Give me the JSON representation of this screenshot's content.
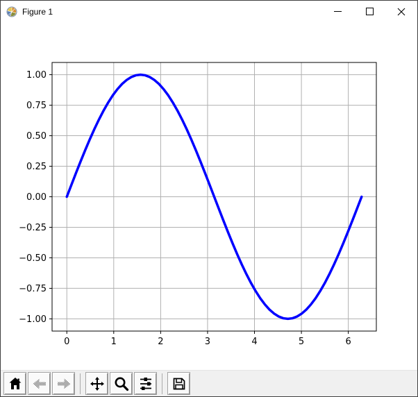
{
  "window": {
    "title": "Figure 1",
    "icon": "matplotlib-logo-icon",
    "controls": [
      {
        "name": "minimize",
        "icon": "minimize-icon"
      },
      {
        "name": "maximize",
        "icon": "maximize-icon"
      },
      {
        "name": "close",
        "icon": "close-icon"
      }
    ]
  },
  "toolbar": {
    "buttons": [
      {
        "id": "home",
        "icon": "home-icon",
        "enabled": true
      },
      {
        "id": "back",
        "icon": "back-arrow-icon",
        "enabled": false
      },
      {
        "id": "forward",
        "icon": "forward-arrow-icon",
        "enabled": false
      },
      {
        "id": "pan",
        "icon": "pan-arrows-icon",
        "enabled": true
      },
      {
        "id": "zoom",
        "icon": "zoom-magnifier-icon",
        "enabled": true
      },
      {
        "id": "configure-subplots",
        "icon": "sliders-icon",
        "enabled": true
      },
      {
        "id": "save",
        "icon": "save-floppy-icon",
        "enabled": true
      }
    ]
  },
  "colors": {
    "curve": "#0000ff",
    "grid": "#b0b0b0",
    "axes_frame": "#000000",
    "canvas_bg": "#ffffff",
    "toolbar_bg": "#f0f0f0"
  },
  "chart_data": {
    "type": "line",
    "title": "",
    "xlabel": "",
    "ylabel": "",
    "grid": true,
    "legend": false,
    "xlim": [
      -0.3142,
      6.5973
    ],
    "ylim": [
      -1.1,
      1.1
    ],
    "xticks": [
      0,
      1,
      2,
      3,
      4,
      5,
      6
    ],
    "xtick_labels": [
      "0",
      "1",
      "2",
      "3",
      "4",
      "5",
      "6"
    ],
    "yticks": [
      1.0,
      0.75,
      0.5,
      0.25,
      0.0,
      -0.25,
      -0.5,
      -0.75,
      -1.0
    ],
    "ytick_labels": [
      "1.00",
      "0.75",
      "0.50",
      "0.25",
      "0.00",
      "−0.25",
      "−0.50",
      "−0.75",
      "−1.00"
    ],
    "series": [
      {
        "color": "#0000ff",
        "linewidth": 3.5,
        "x": [
          0.0,
          0.0982,
          0.1963,
          0.2945,
          0.3927,
          0.4909,
          0.589,
          0.6872,
          0.7854,
          0.8836,
          0.9817,
          1.0799,
          1.1781,
          1.2763,
          1.3744,
          1.4726,
          1.5708,
          1.669,
          1.7671,
          1.8653,
          1.9635,
          2.0617,
          2.1598,
          2.258,
          2.3562,
          2.4544,
          2.5525,
          2.6507,
          2.7489,
          2.8471,
          2.9452,
          3.0434,
          3.1416,
          3.2398,
          3.3379,
          3.4361,
          3.5343,
          3.6325,
          3.7306,
          3.8288,
          3.927,
          4.0252,
          4.1233,
          4.2215,
          4.3197,
          4.4179,
          4.516,
          4.6142,
          4.7124,
          4.8106,
          4.9087,
          5.0069,
          5.1051,
          5.2033,
          5.3014,
          5.3996,
          5.4978,
          5.596,
          5.6941,
          5.7923,
          5.8905,
          5.9887,
          6.0868,
          6.185,
          6.2832
        ],
        "y": [
          0.0,
          0.098,
          0.1951,
          0.2903,
          0.3827,
          0.4714,
          0.5556,
          0.6344,
          0.7071,
          0.773,
          0.8315,
          0.8819,
          0.9239,
          0.9569,
          0.9808,
          0.9952,
          1.0,
          0.9952,
          0.9808,
          0.9569,
          0.9239,
          0.8819,
          0.8315,
          0.773,
          0.7071,
          0.6344,
          0.5556,
          0.4714,
          0.3827,
          0.2903,
          0.1951,
          0.098,
          0.0,
          -0.098,
          -0.1951,
          -0.2903,
          -0.3827,
          -0.4714,
          -0.5556,
          -0.6344,
          -0.7071,
          -0.773,
          -0.8315,
          -0.8819,
          -0.9239,
          -0.9569,
          -0.9808,
          -0.9952,
          -1.0,
          -0.9952,
          -0.9808,
          -0.9569,
          -0.9239,
          -0.8819,
          -0.8315,
          -0.773,
          -0.7071,
          -0.6344,
          -0.5556,
          -0.4714,
          -0.3827,
          -0.2903,
          -0.1951,
          -0.098,
          0.0
        ]
      }
    ]
  }
}
